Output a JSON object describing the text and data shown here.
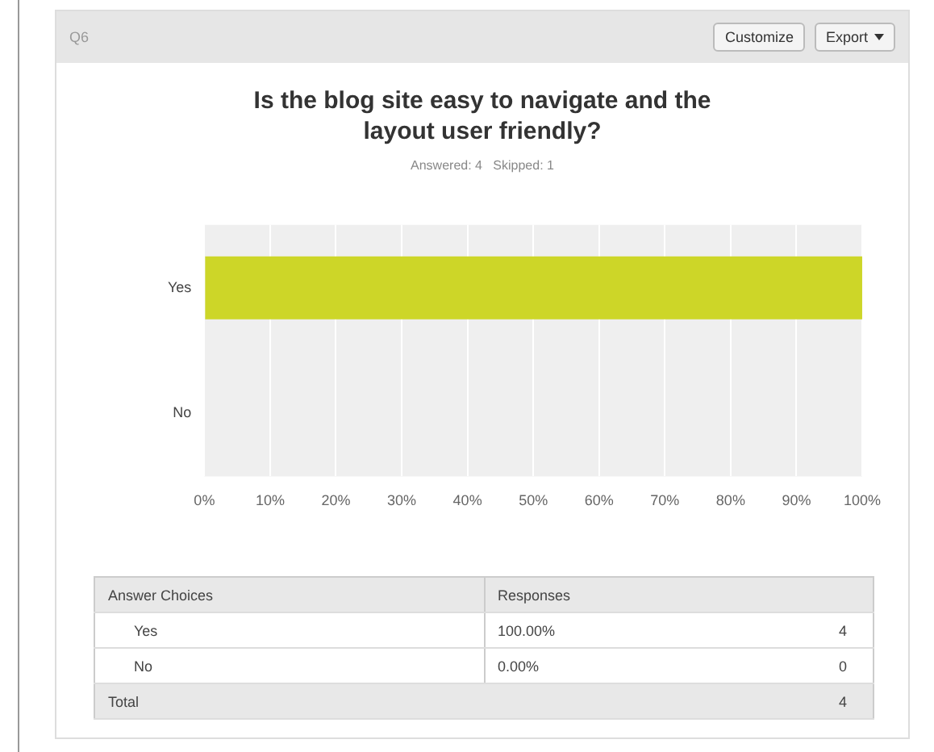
{
  "chart_data": {
    "type": "bar",
    "orientation": "horizontal",
    "title": "Is the blog site easy to navigate and the layout user friendly?",
    "subtitle": "Answered: 4   Skipped: 1",
    "categories": [
      "Yes",
      "No"
    ],
    "values": [
      100,
      0
    ],
    "color": "#cdd628",
    "xlim": [
      0,
      100
    ],
    "xticks": [
      {
        "value": 0,
        "label": "0%"
      },
      {
        "value": 10,
        "label": "10%"
      },
      {
        "value": 20,
        "label": "20%"
      },
      {
        "value": 30,
        "label": "30%"
      },
      {
        "value": 40,
        "label": "40%"
      },
      {
        "value": 50,
        "label": "50%"
      },
      {
        "value": 60,
        "label": "60%"
      },
      {
        "value": 70,
        "label": "70%"
      },
      {
        "value": 80,
        "label": "80%"
      },
      {
        "value": 90,
        "label": "90%"
      },
      {
        "value": 100,
        "label": "100%"
      }
    ],
    "grid": "x",
    "legend": false,
    "annotations": [
      "Q6",
      "Customize",
      "Export",
      "Answer Choices",
      "Responses",
      "100.00%",
      "4",
      "0.00%",
      "0",
      "Total",
      "4"
    ]
  }
}
